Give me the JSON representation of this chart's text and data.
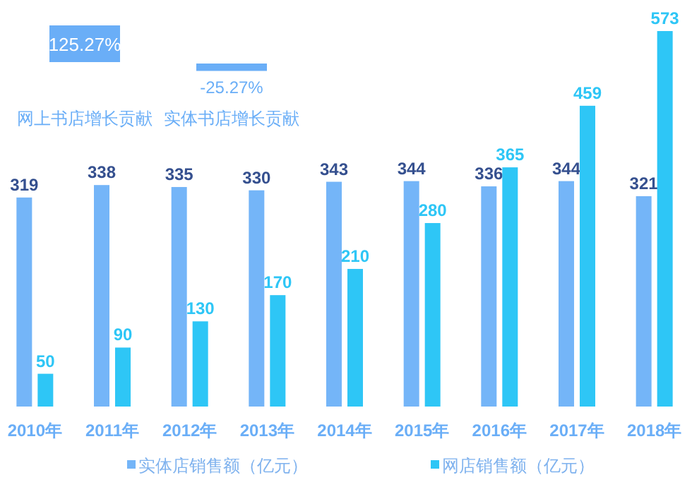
{
  "chart_data": [
    {
      "type": "bar",
      "categories": [
        "网上书店增长贡献",
        "实体书店增长贡献"
      ],
      "values": [
        125.27,
        -25.27
      ],
      "colors": [
        "#6aaef7",
        "#6aaef7"
      ],
      "value_labels": [
        "125.27%",
        "-25.27%"
      ]
    },
    {
      "type": "bar",
      "categories": [
        "2010年",
        "2011年",
        "2012年",
        "2013年",
        "2014年",
        "2015年",
        "2016年",
        "2017年",
        "2018年"
      ],
      "series": [
        {
          "name": "实体店销售额（亿元）",
          "color": "#74b5f8",
          "values": [
            319,
            338,
            335,
            330,
            343,
            344,
            336,
            344,
            321
          ]
        },
        {
          "name": "网店销售额（亿元）",
          "color": "#2ec6f6",
          "values": [
            50,
            90,
            130,
            170,
            210,
            280,
            365,
            459,
            573
          ]
        }
      ],
      "data_labels": true,
      "legend": "bottom"
    }
  ]
}
